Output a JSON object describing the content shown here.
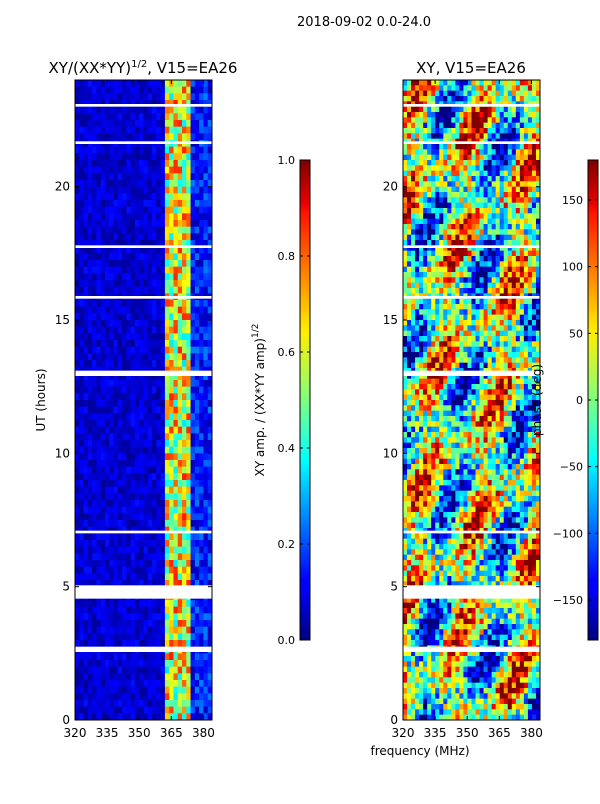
{
  "figure": {
    "suptitle": "2018-09-02 0.0-24.0",
    "xlabel": "frequency (MHz)"
  },
  "chart_data": [
    {
      "type": "heatmap",
      "title": "XY/(XX*YY)",
      "title_superscript": "1/2",
      "title_suffix": ", V15=EA26",
      "ylabel": "UT (hours)",
      "xlim": [
        320,
        384
      ],
      "ylim": [
        0,
        24
      ],
      "xticks": [
        "320",
        "335",
        "350",
        "365",
        "380"
      ],
      "yticks": [
        "0",
        "5",
        "10",
        "15",
        "20"
      ],
      "colorbar": {
        "label": "XY amp. / (XX*YY amp)",
        "label_superscript": "1/2",
        "range": [
          0.0,
          1.0
        ],
        "ticks": [
          "0.0",
          "0.2",
          "0.4",
          "0.6",
          "0.8",
          "1.0"
        ],
        "colormap": "jet"
      },
      "gaps_ut_hours": [
        [
          4.55,
          5.05
        ],
        [
          2.55,
          2.75
        ],
        [
          12.9,
          13.1
        ],
        [
          7.0,
          7.1
        ],
        [
          15.8,
          15.9
        ],
        [
          17.7,
          17.8
        ],
        [
          21.6,
          21.7
        ],
        [
          23.0,
          23.1
        ]
      ],
      "high_band_mhz": [
        363,
        373
      ]
    },
    {
      "type": "heatmap",
      "title": "XY, V15=EA26",
      "xlim": [
        320,
        384
      ],
      "ylim": [
        0,
        24
      ],
      "xticks": [
        "320",
        "335",
        "350",
        "365",
        "380"
      ],
      "yticks": [
        "0",
        "5",
        "10",
        "15",
        "20"
      ],
      "colorbar": {
        "label": "phase (deg)",
        "range": [
          -180,
          180
        ],
        "ticks": [
          "-150",
          "-100",
          "-50",
          "0",
          "50",
          "100",
          "150"
        ],
        "colormap": "jet"
      },
      "gaps_ut_hours": [
        [
          4.55,
          5.05
        ],
        [
          2.55,
          2.75
        ],
        [
          12.9,
          13.1
        ],
        [
          7.0,
          7.1
        ],
        [
          15.8,
          15.9
        ],
        [
          17.7,
          17.8
        ],
        [
          21.6,
          21.7
        ],
        [
          23.0,
          23.1
        ]
      ]
    }
  ]
}
